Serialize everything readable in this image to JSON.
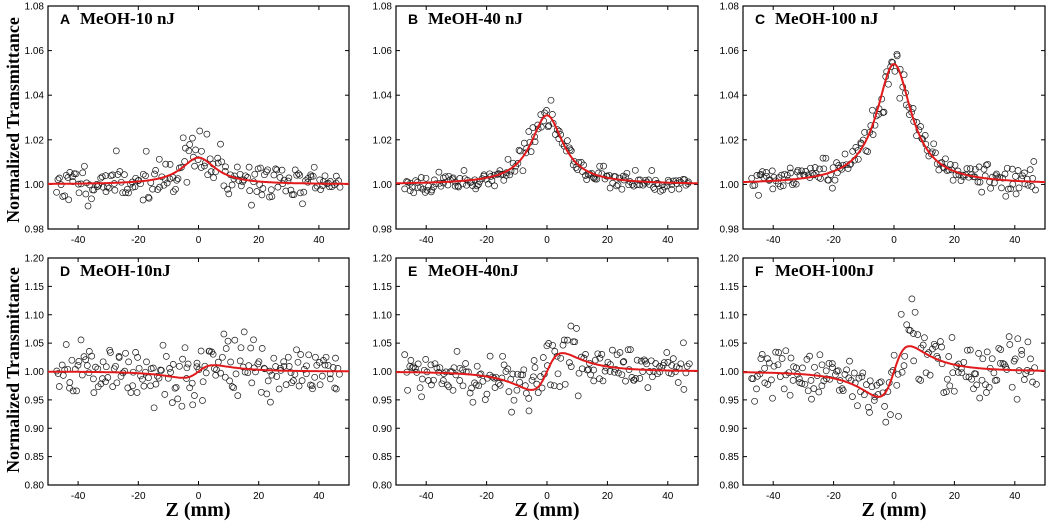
{
  "figure": {
    "ylabel_top": "Normalized Transmittance",
    "ylabel_bottom": "Normalized Transmittance",
    "xlabel": "Z (mm)"
  },
  "chart_data": [
    {
      "type": "scatter",
      "panel_letter": "A",
      "title": "MeOH-10 nJ",
      "xlabel": "Z (mm)",
      "ylabel": "Normalized Transmittance",
      "xlim": [
        -50,
        50
      ],
      "ylim": [
        0.98,
        1.08
      ],
      "xticks": [
        -40,
        -20,
        0,
        20,
        40
      ],
      "yticks": [
        0.98,
        1.0,
        1.02,
        1.04,
        1.06,
        1.08
      ],
      "tick_decimals": 2,
      "fit": {
        "kind": "closed-aperture-peak",
        "amplitude": 0.012,
        "width": 7.0
      },
      "scatter_noise": 0.004,
      "seed": 11,
      "series": [
        {
          "name": "data",
          "marker": "open-circle",
          "color": "#000000"
        },
        {
          "name": "fit",
          "style": "line",
          "color": "#e31a1c"
        }
      ]
    },
    {
      "type": "scatter",
      "panel_letter": "B",
      "title": "MeOH-40 nJ",
      "xlabel": "Z (mm)",
      "ylabel": "Normalized Transmittance",
      "xlim": [
        -50,
        50
      ],
      "ylim": [
        0.98,
        1.08
      ],
      "xticks": [
        -40,
        -20,
        0,
        20,
        40
      ],
      "yticks": [
        0.98,
        1.0,
        1.02,
        1.04,
        1.06,
        1.08
      ],
      "tick_decimals": 2,
      "fit": {
        "kind": "closed-aperture-peak",
        "amplitude": 0.031,
        "width": 6.5
      },
      "scatter_noise": 0.002,
      "seed": 23,
      "series": [
        {
          "name": "data",
          "marker": "open-circle",
          "color": "#000000"
        },
        {
          "name": "fit",
          "style": "line",
          "color": "#e31a1c"
        }
      ]
    },
    {
      "type": "scatter",
      "panel_letter": "C",
      "title": "MeOH-100 nJ",
      "xlabel": "Z (mm)",
      "ylabel": "Normalized Transmittance",
      "xlim": [
        -50,
        50
      ],
      "ylim": [
        0.98,
        1.08
      ],
      "xticks": [
        -40,
        -20,
        0,
        20,
        40
      ],
      "yticks": [
        0.98,
        1.0,
        1.02,
        1.04,
        1.06,
        1.08
      ],
      "tick_decimals": 2,
      "fit": {
        "kind": "closed-aperture-peak",
        "amplitude": 0.054,
        "width": 7.0
      },
      "scatter_noise": 0.003,
      "seed": 37,
      "series": [
        {
          "name": "data",
          "marker": "open-circle",
          "color": "#000000"
        },
        {
          "name": "fit",
          "style": "line",
          "color": "#e31a1c"
        }
      ]
    },
    {
      "type": "scatter",
      "panel_letter": "D",
      "title": "MeOH-10nJ",
      "xlabel": "Z (mm)",
      "ylabel": "Normalized Transmittance",
      "xlim": [
        -50,
        50
      ],
      "ylim": [
        0.8,
        1.2
      ],
      "xticks": [
        -40,
        -20,
        0,
        20,
        40
      ],
      "yticks": [
        0.8,
        0.85,
        0.9,
        0.95,
        1.0,
        1.05,
        1.1,
        1.15,
        1.2
      ],
      "tick_decimals": 2,
      "fit": {
        "kind": "peak-valley",
        "amplitude": 0.055,
        "width": 6.0
      },
      "scatter_noise": 0.022,
      "seed": 41,
      "series": [
        {
          "name": "data",
          "marker": "open-circle",
          "color": "#000000"
        },
        {
          "name": "fit",
          "style": "line",
          "color": "#e31a1c"
        }
      ]
    },
    {
      "type": "scatter",
      "panel_letter": "E",
      "title": "MeOH-40nJ",
      "xlabel": "Z (mm)",
      "ylabel": "Normalized Transmittance",
      "xlim": [
        -50,
        50
      ],
      "ylim": [
        0.8,
        1.2
      ],
      "xticks": [
        -40,
        -20,
        0,
        20,
        40
      ],
      "yticks": [
        0.8,
        0.85,
        0.9,
        0.95,
        1.0,
        1.05,
        1.1,
        1.15,
        1.2
      ],
      "tick_decimals": 2,
      "fit": {
        "kind": "peak-valley",
        "amplitude": 0.16,
        "width": 6.0
      },
      "scatter_noise": 0.018,
      "seed": 53,
      "series": [
        {
          "name": "data",
          "marker": "open-circle",
          "color": "#000000"
        },
        {
          "name": "fit",
          "style": "line",
          "color": "#e31a1c"
        }
      ]
    },
    {
      "type": "scatter",
      "panel_letter": "F",
      "title": "MeOH-100nJ",
      "xlabel": "Z (mm)",
      "ylabel": "Normalized Transmittance",
      "xlim": [
        -50,
        50
      ],
      "ylim": [
        0.8,
        1.2
      ],
      "xticks": [
        -40,
        -20,
        0,
        20,
        40
      ],
      "yticks": [
        0.8,
        0.85,
        0.9,
        0.95,
        1.0,
        1.05,
        1.1,
        1.15,
        1.2
      ],
      "tick_decimals": 2,
      "fit": {
        "kind": "peak-valley",
        "amplitude": 0.22,
        "width": 6.0
      },
      "scatter_noise": 0.022,
      "seed": 67,
      "series": [
        {
          "name": "data",
          "marker": "open-circle",
          "color": "#000000"
        },
        {
          "name": "fit",
          "style": "line",
          "color": "#e31a1c"
        }
      ]
    }
  ]
}
